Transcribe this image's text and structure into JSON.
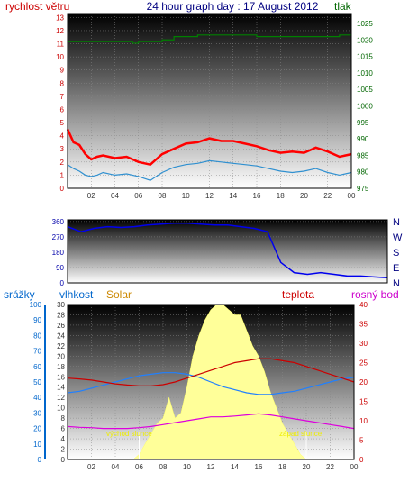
{
  "chart_data": [
    {
      "type": "line",
      "title": "24 hour graph day : 17 August 2012",
      "left_label": "rychlost větru",
      "right_label": "tlak",
      "x_ticks": [
        "02",
        "04",
        "06",
        "08",
        "10",
        "12",
        "14",
        "16",
        "18",
        "20",
        "22",
        "00"
      ],
      "y_left_ticks": [
        "0",
        "1",
        "2",
        "3",
        "4",
        "5",
        "6",
        "7",
        "8",
        "9",
        "10",
        "11",
        "12",
        "13"
      ],
      "y_right_ticks": [
        "975",
        "980",
        "985",
        "990",
        "995",
        "1000",
        "1005",
        "1010",
        "1015",
        "1020",
        "1025"
      ],
      "ylim_left": [
        0,
        13.3
      ],
      "ylim_right": [
        975,
        1028
      ],
      "colors": {
        "gust": "#ff0000",
        "wind": "#3090d0",
        "pressure": "#008000",
        "left_axis": "#cc0000",
        "right_axis": "#006600"
      },
      "series": [
        {
          "role": "gust",
          "hours": [
            0,
            0.5,
            1,
            1.5,
            2,
            2.5,
            3,
            4,
            5,
            6,
            7,
            8,
            9,
            10,
            11,
            12,
            13,
            14,
            15,
            16,
            17,
            18,
            19,
            20,
            21,
            22,
            23,
            24
          ],
          "values": [
            4.5,
            3.5,
            3.3,
            2.6,
            2.2,
            2.4,
            2.5,
            2.3,
            2.4,
            2.0,
            1.8,
            2.6,
            3.0,
            3.4,
            3.5,
            3.8,
            3.6,
            3.6,
            3.4,
            3.2,
            2.9,
            2.7,
            2.8,
            2.7,
            3.1,
            2.8,
            2.4,
            2.6
          ]
        },
        {
          "role": "wind",
          "hours": [
            0,
            0.5,
            1,
            1.5,
            2,
            2.5,
            3,
            4,
            5,
            6,
            7,
            8,
            9,
            10,
            11,
            12,
            13,
            14,
            15,
            16,
            17,
            18,
            19,
            20,
            21,
            22,
            23,
            24
          ],
          "values": [
            1.8,
            1.5,
            1.3,
            1.0,
            0.9,
            1.0,
            1.2,
            1.0,
            1.1,
            0.9,
            0.6,
            1.2,
            1.6,
            1.8,
            1.9,
            2.1,
            2.0,
            1.9,
            1.8,
            1.7,
            1.5,
            1.3,
            1.2,
            1.3,
            1.5,
            1.2,
            1.0,
            1.2
          ]
        },
        {
          "role": "pressure",
          "hours": [
            0,
            3,
            4,
            5,
            5.5,
            6,
            8,
            9,
            10,
            11,
            12,
            16,
            17,
            18,
            20,
            22,
            23,
            24
          ],
          "values": [
            1019.5,
            1019.5,
            1019.5,
            1019.5,
            1019.0,
            1019.5,
            1020.0,
            1021.0,
            1021.0,
            1021.5,
            1021.5,
            1021.0,
            1021.0,
            1021.0,
            1021.0,
            1021.0,
            1021.5,
            1021.5
          ]
        }
      ]
    },
    {
      "type": "line",
      "y_left_ticks": [
        "0",
        "90",
        "180",
        "270",
        "360"
      ],
      "y_right_ticks": [
        "N",
        "E",
        "S",
        "W",
        "N"
      ],
      "ylim": [
        0,
        370
      ],
      "colors": {
        "direction": "#0000ee",
        "axis": "#000080"
      },
      "series": [
        {
          "role": "direction",
          "hours": [
            0,
            1,
            2,
            3,
            4,
            5,
            6,
            7,
            8,
            9,
            10,
            11,
            12,
            13,
            14,
            15,
            16,
            17,
            18,
            19,
            20,
            21,
            22,
            23,
            24
          ],
          "values": [
            330,
            300,
            320,
            330,
            325,
            330,
            340,
            345,
            350,
            350,
            345,
            340,
            340,
            330,
            320,
            300,
            120,
            60,
            50,
            60,
            50,
            40,
            40,
            35,
            30
          ]
        }
      ]
    },
    {
      "type": "area",
      "labels": {
        "rain": "srážky",
        "humidity": "vlhkost",
        "solar": "Solar",
        "temp": "teplota",
        "dew": "rosný bod",
        "sunrise": "východ slunce",
        "sunset": "západ slunce"
      },
      "x_ticks": [
        "02",
        "04",
        "06",
        "08",
        "10",
        "12",
        "14",
        "16",
        "18",
        "20",
        "22",
        "00"
      ],
      "y_rain_ticks": [
        "0",
        "10",
        "20",
        "30",
        "40",
        "50",
        "60",
        "70",
        "80",
        "90",
        "100"
      ],
      "y_mid_ticks": [
        "0",
        "2",
        "4",
        "6",
        "8",
        "10",
        "12",
        "14",
        "16",
        "18",
        "20",
        "22",
        "24",
        "26",
        "28",
        "30"
      ],
      "y_right_ticks": [
        "0",
        "5",
        "10",
        "15",
        "20",
        "25",
        "30",
        "35",
        "40"
      ],
      "ylim_rain": [
        0,
        100
      ],
      "ylim_temp": [
        0,
        40
      ],
      "sunrise_hour": 6.0,
      "sunset_hour": 20.0,
      "colors": {
        "rain_axis": "#0066cc",
        "humidity_axis": "#0066cc",
        "solar": "#ffff99",
        "solar_label": "#cc8800",
        "temp": "#cc0000",
        "dew": "#dd00dd",
        "humidity": "#2080ff",
        "sun_label": "#eeee00"
      },
      "series": [
        {
          "role": "humidity",
          "hours": [
            0,
            1,
            2,
            3,
            4,
            5,
            6,
            7,
            8,
            9,
            10,
            11,
            12,
            13,
            14,
            15,
            16,
            17,
            18,
            19,
            20,
            21,
            22,
            23,
            24
          ],
          "values": [
            43,
            44,
            46,
            48,
            50,
            52,
            54,
            55,
            56,
            56,
            55,
            53,
            50,
            47,
            45,
            43,
            42,
            42,
            43,
            44,
            46,
            48,
            50,
            52,
            53
          ]
        },
        {
          "role": "temp",
          "hours": [
            0,
            1,
            2,
            3,
            4,
            5,
            6,
            7,
            8,
            9,
            10,
            11,
            12,
            13,
            14,
            15,
            16,
            17,
            18,
            19,
            20,
            21,
            22,
            23,
            24
          ],
          "values": [
            21.0,
            20.8,
            20.5,
            20.0,
            19.5,
            19.2,
            19.0,
            19.0,
            19.3,
            20.0,
            21.0,
            22.0,
            23.0,
            24.0,
            25.0,
            25.5,
            26.0,
            26.0,
            25.5,
            25.0,
            24.0,
            23.0,
            22.0,
            21.0,
            20.0
          ]
        },
        {
          "role": "dew",
          "hours": [
            0,
            1,
            2,
            3,
            4,
            5,
            6,
            7,
            8,
            9,
            10,
            11,
            12,
            13,
            14,
            15,
            16,
            17,
            18,
            19,
            20,
            21,
            22,
            23,
            24
          ],
          "values": [
            8.5,
            8.3,
            8.2,
            8.0,
            8.0,
            8.0,
            8.2,
            8.5,
            9.0,
            9.5,
            10.0,
            10.5,
            11.0,
            11.0,
            11.2,
            11.5,
            11.8,
            11.5,
            11.0,
            10.5,
            10.0,
            9.5,
            9.0,
            8.5,
            8.0
          ]
        },
        {
          "role": "solar",
          "hours": [
            5.5,
            6,
            6.5,
            7,
            7.5,
            8,
            8.5,
            9,
            9.5,
            10,
            10.5,
            11,
            11.5,
            12,
            12.5,
            13,
            13.5,
            14,
            14.5,
            15,
            15.5,
            16,
            16.5,
            17,
            17.5,
            18,
            18.5,
            19,
            19.5,
            20
          ],
          "values": [
            0,
            1,
            3,
            5,
            7,
            8,
            12,
            8,
            9,
            14,
            20,
            24,
            27,
            29,
            30,
            30,
            29,
            28,
            28,
            25,
            22,
            20,
            17,
            13,
            10,
            7,
            5,
            3,
            1,
            0
          ]
        }
      ]
    }
  ]
}
